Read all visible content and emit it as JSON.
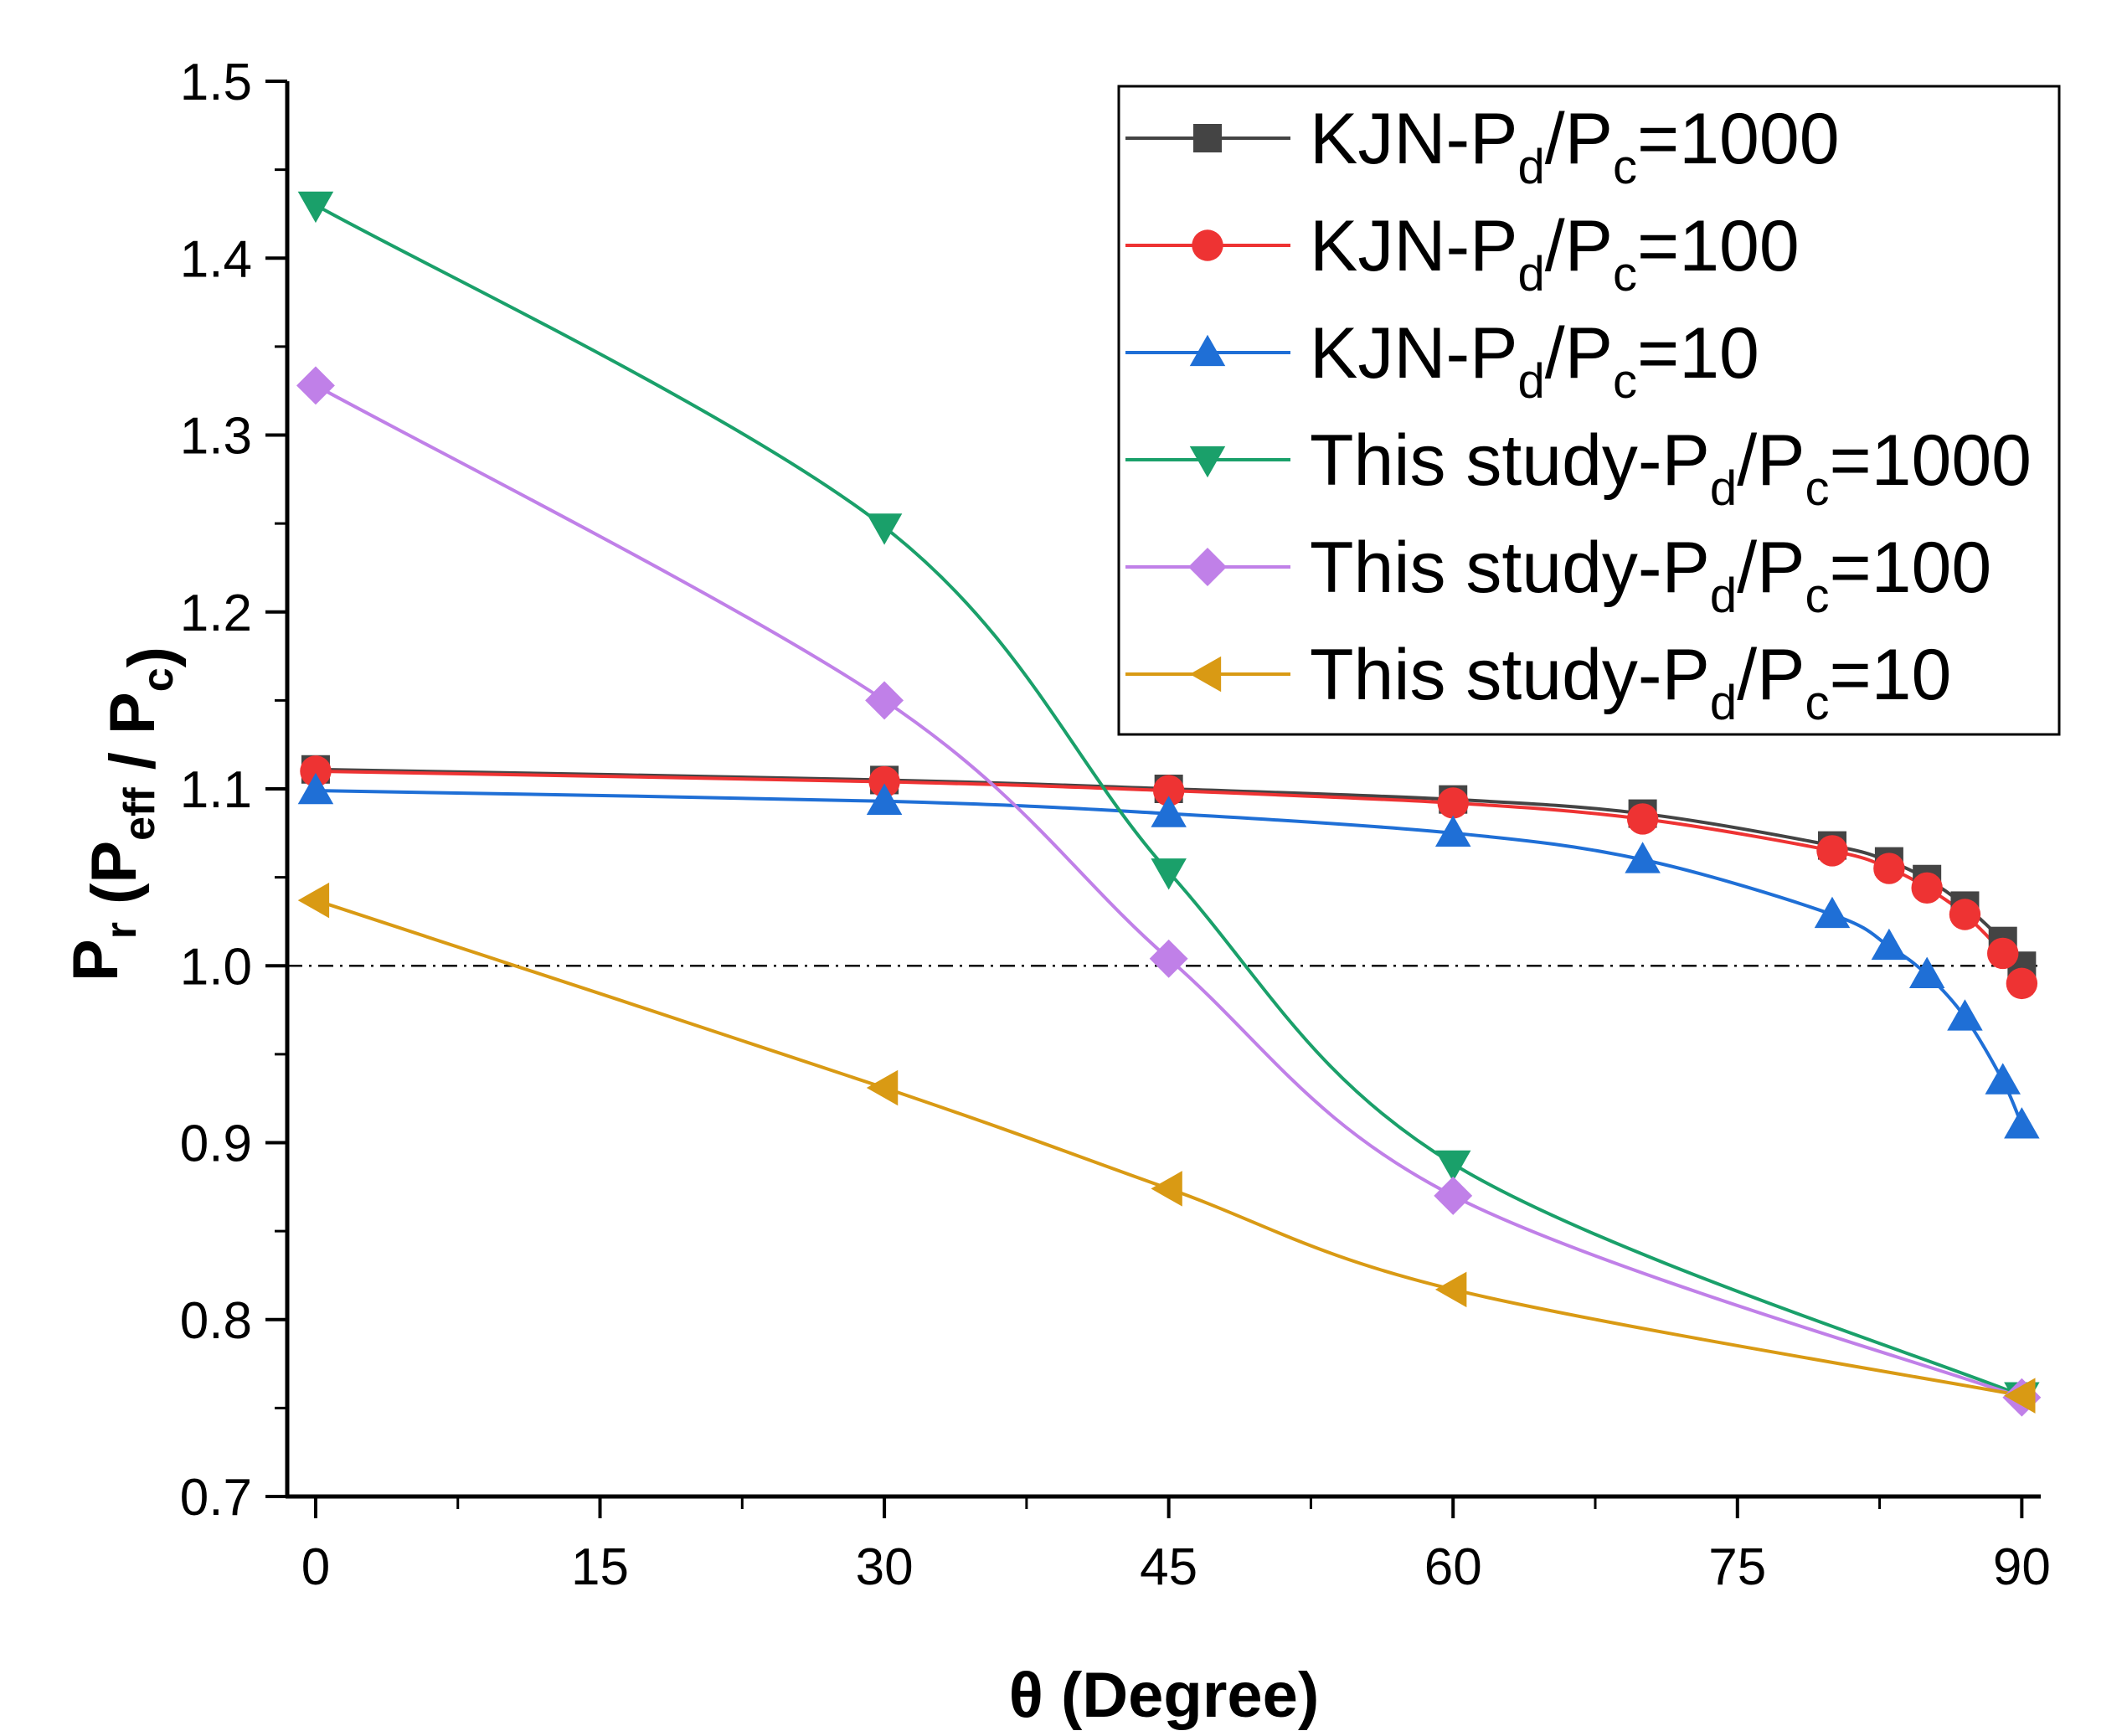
{
  "chart_data": {
    "type": "line",
    "title": "",
    "xlabel": "θ (Degree)",
    "ylabel": {
      "base": "P",
      "sub1": "r",
      "mid": " (P",
      "sub2": "eff",
      "mid2": " / P",
      "sub3": "c",
      "end": ")"
    },
    "xlim": [
      -1.5,
      91
    ],
    "ylim": [
      0.7,
      1.5
    ],
    "x_ticks": [
      0,
      15,
      30,
      45,
      60,
      75,
      90
    ],
    "y_ticks": [
      0.7,
      0.8,
      0.9,
      1.0,
      1.1,
      1.2,
      1.3,
      1.4,
      1.5
    ],
    "x_tick_labels": [
      "0",
      "15",
      "30",
      "45",
      "60",
      "75",
      "90"
    ],
    "y_tick_labels": [
      "0.7",
      "0.8",
      "0.9",
      "1.0",
      "1.1",
      "1.2",
      "1.3",
      "1.4",
      "1.5"
    ],
    "reference_line": {
      "y": 1.0,
      "style": "dash-dot"
    },
    "legend_position": "top-right",
    "series": [
      {
        "name": "KJN-Pd/Pc=1000",
        "label_parts": [
          "KJN-P",
          "d",
          "/P",
          "c",
          "=1000"
        ],
        "color": "#444444",
        "marker": "square",
        "x": [
          0,
          30,
          45,
          60,
          70,
          80,
          83,
          85,
          87,
          89,
          90
        ],
        "y": [
          1.111,
          1.105,
          1.1,
          1.094,
          1.086,
          1.068,
          1.059,
          1.049,
          1.034,
          1.014,
          1.0
        ]
      },
      {
        "name": "KJN-Pd/Pc=100",
        "label_parts": [
          "KJN-P",
          "d",
          "/P",
          "c",
          "=100"
        ],
        "color": "#ee3333",
        "marker": "circle",
        "x": [
          0,
          30,
          45,
          60,
          70,
          80,
          83,
          85,
          87,
          89,
          90
        ],
        "y": [
          1.11,
          1.104,
          1.099,
          1.092,
          1.083,
          1.065,
          1.055,
          1.044,
          1.029,
          1.007,
          0.99
        ]
      },
      {
        "name": "KJN-Pd/Pc=10",
        "label_parts": [
          "KJN-P",
          "d",
          "/P",
          "c",
          "=10"
        ],
        "color": "#1f6fd6",
        "marker": "triangle-up",
        "x": [
          0,
          30,
          45,
          60,
          70,
          80,
          83,
          85,
          87,
          89,
          90
        ],
        "y": [
          1.099,
          1.093,
          1.086,
          1.075,
          1.06,
          1.029,
          1.011,
          0.995,
          0.971,
          0.935,
          0.91
        ]
      },
      {
        "name": "This study-Pd/Pc=1000",
        "label_parts": [
          "This study-P",
          "d",
          "/P",
          "c",
          "=1000"
        ],
        "color": "#1aa06a",
        "marker": "triangle-down",
        "x": [
          0,
          30,
          45,
          60,
          90
        ],
        "y": [
          1.43,
          1.248,
          1.053,
          0.888,
          0.757
        ]
      },
      {
        "name": "This study-Pd/Pc=100",
        "label_parts": [
          "This study-P",
          "d",
          "/P",
          "c",
          "=100"
        ],
        "color": "#c080e8",
        "marker": "diamond",
        "x": [
          0,
          30,
          45,
          60,
          90
        ],
        "y": [
          1.328,
          1.15,
          1.004,
          0.87,
          0.756
        ]
      },
      {
        "name": "This study-Pd/Pc=10",
        "label_parts": [
          "This study-P",
          "d",
          "/P",
          "c",
          "=10"
        ],
        "color": "#d99a14",
        "marker": "triangle-left",
        "x": [
          0,
          30,
          45,
          60,
          90
        ],
        "y": [
          1.037,
          0.931,
          0.874,
          0.817,
          0.757
        ]
      }
    ]
  }
}
